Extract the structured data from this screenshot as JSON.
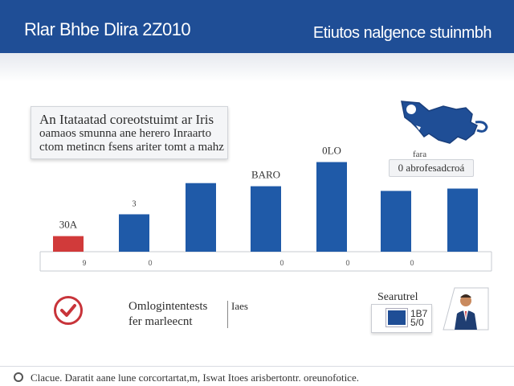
{
  "header": {
    "title": "Rlar Bhbe Dlira 2Z010",
    "subtitle": "Etiutos nalgence stuinmbh"
  },
  "callout": {
    "line1": "An Itataatad coreotstuimt ar Iris",
    "line2": "oamaos smunna ane herero Inraarto",
    "line3": "ctom metincn fsens ariter tomt a mahz"
  },
  "chart_data": {
    "type": "bar",
    "categories": [
      "9",
      "0",
      "",
      "0",
      "0",
      "0",
      ""
    ],
    "values": [
      20,
      48,
      88,
      84,
      115,
      78,
      81
    ],
    "colors": [
      "#d13a3a",
      "#1f5aa8",
      "#1f5aa8",
      "#1f5aa8",
      "#1f5aa8",
      "#1f5aa8",
      "#1f5aa8"
    ],
    "data_labels": [
      "30A",
      "3",
      "",
      "BARO",
      "0LO",
      "",
      ""
    ],
    "ylim": [
      0,
      130
    ],
    "grid": false,
    "legend": "none"
  },
  "badge": {
    "caption": "fara",
    "label": "0 abrofesadcroá"
  },
  "status": {
    "text_line1": "Omlogintentests",
    "text_line2": "fer marleecnt",
    "extra": "Iaes"
  },
  "card": {
    "label": "Searutrel",
    "value": "1B7 5/0"
  },
  "footer": {
    "text": "Clacue. Daratit aane lune corcortartat,m, Iswat Itoes arisbertontr. oreunofotice."
  },
  "icons": {
    "check": "check-circle-icon",
    "map": "map-icon",
    "portrait": "portrait-icon",
    "footer": "info-icon"
  }
}
